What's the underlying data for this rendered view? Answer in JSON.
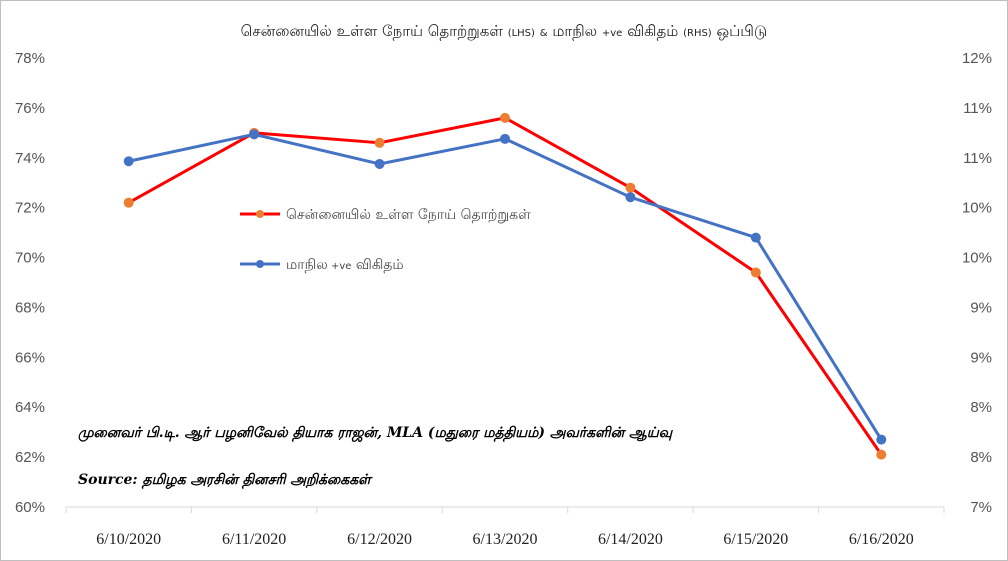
{
  "title": {
    "main": "சென்னையில் உள்ள நோய் தொற்றுகள்",
    "lhs_tag": "(LHS)",
    "amp": "&",
    "second": "மாநில",
    "ve": "+ve",
    "second_b": "விகிதம்",
    "rhs_tag": "(RHS)",
    "end": "ஒப்பிடு"
  },
  "notes": {
    "author": "முனைவர் பி.டி. ஆர் பழனிவேல் தியாக ராஜன், MLA (மதுரை மத்தியம்) அவர்களின் ஆய்வு",
    "source": "Source: தமிழக அரசின் தினசரி அறிக்கைகள்"
  },
  "chart_data": {
    "type": "line",
    "categories": [
      "6/10/2020",
      "6/11/2020",
      "6/12/2020",
      "6/13/2020",
      "6/14/2020",
      "6/15/2020",
      "6/16/2020"
    ],
    "y_left": {
      "range": [
        60,
        78
      ],
      "ticks": [
        "60%",
        "62%",
        "64%",
        "66%",
        "68%",
        "70%",
        "72%",
        "74%",
        "76%",
        "78%"
      ]
    },
    "y_right": {
      "range": [
        7,
        12
      ],
      "ticks": [
        "7%",
        "8%",
        "8%",
        "9%",
        "9%",
        "10%",
        "10%",
        "11%",
        "11%",
        "12%"
      ]
    },
    "series": [
      {
        "name": "சென்னையில் உள்ள நோய் தொற்றுகள்",
        "axis": "left",
        "values": [
          72.2,
          75.0,
          74.6,
          75.6,
          72.8,
          69.4,
          62.1
        ],
        "line_color": "#ff0000",
        "marker_color": "#ed7d31"
      },
      {
        "name": "மாநில +ve விகிதம்",
        "name_parts": [
          "மாநில",
          "+ve",
          "விகிதம்"
        ],
        "axis": "right",
        "values": [
          10.85,
          11.15,
          10.82,
          11.1,
          10.45,
          10.0,
          7.75
        ],
        "line_color": "#4472c4",
        "marker_color": "#4472c4"
      }
    ],
    "grid": false,
    "legend_position": "center-left"
  }
}
